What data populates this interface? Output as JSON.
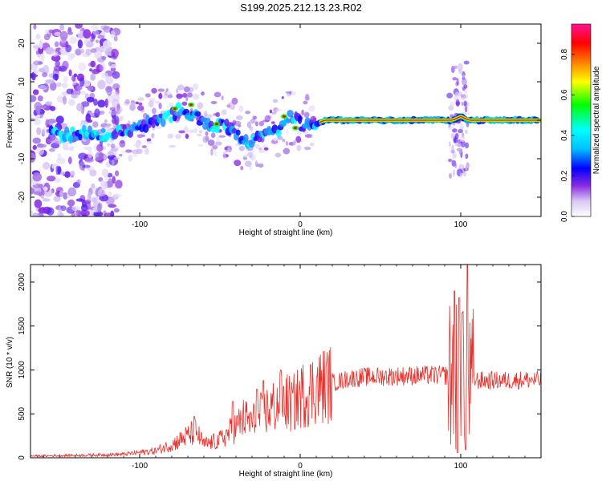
{
  "title": "S199.2025.212.13.23.R02",
  "chart_data": [
    {
      "type": "heatmap",
      "xlabel": "Height of straight line (km)",
      "ylabel": "Frequency (Hz)",
      "xlim": [
        -168,
        150
      ],
      "ylim": [
        -25,
        25
      ],
      "x_ticks": [
        -100,
        0,
        100
      ],
      "y_ticks": [
        -20,
        -10,
        0,
        10,
        20
      ],
      "colorbar": {
        "label": "Normalized spectral amplitude",
        "range": [
          0.0,
          0.95
        ],
        "ticks": [
          0.0,
          0.2,
          0.4,
          0.6,
          0.8
        ],
        "colors": [
          "#ffffff",
          "#d8c8f4",
          "#8a2be2",
          "#0000ff",
          "#00bfff",
          "#00ffff",
          "#00ff00",
          "#ffff00",
          "#ff8000",
          "#ff0000",
          "#ff1493"
        ]
      },
      "ridge": {
        "x": [
          -160,
          -145,
          -130,
          -120,
          -110,
          -100,
          -90,
          -80,
          -75,
          -70,
          -65,
          -60,
          -55,
          -50,
          -45,
          -40,
          -35,
          -30,
          -25,
          -20,
          -15,
          -10,
          -5,
          0,
          5,
          10,
          15,
          20,
          40,
          60,
          80,
          95,
          100,
          105,
          110,
          130,
          150
        ],
        "y": [
          -3,
          -4,
          -3,
          -4,
          -3,
          -2,
          0,
          1,
          3,
          2,
          1,
          -1,
          -2,
          -1,
          -2,
          -3,
          -6,
          -5,
          -4,
          -2,
          -3,
          -1,
          1,
          -1,
          -1,
          -1,
          0,
          0,
          0,
          0,
          0,
          0,
          1,
          0,
          0,
          0,
          0
        ]
      }
    },
    {
      "type": "line",
      "xlabel": "Height of straight line (km)",
      "ylabel": "SNR (10 * v/v)",
      "xlim": [
        -168,
        150
      ],
      "ylim": [
        0,
        2200
      ],
      "x_ticks": [
        -100,
        0,
        100
      ],
      "y_ticks": [
        0,
        500,
        1000,
        1500,
        2000
      ],
      "color": "#e8322d",
      "envelope": {
        "x": [
          -168,
          -130,
          -110,
          -90,
          -80,
          -70,
          -65,
          -60,
          -50,
          -40,
          -35,
          -30,
          -20,
          -15,
          -10,
          -5,
          0,
          5,
          10,
          20,
          30,
          40,
          60,
          80,
          95,
          100,
          105,
          108,
          110,
          120,
          130,
          140,
          150
        ],
        "y": [
          20,
          30,
          40,
          80,
          150,
          250,
          300,
          150,
          200,
          350,
          450,
          400,
          550,
          600,
          650,
          600,
          700,
          750,
          800,
          850,
          900,
          920,
          930,
          940,
          940,
          900,
          800,
          900,
          880,
          880,
          880,
          890,
          880
        ]
      },
      "spikes": [
        {
          "x": -66,
          "y": 470
        },
        {
          "x": -42,
          "y": 640
        },
        {
          "x": -27,
          "y": 780
        },
        {
          "x": -23,
          "y": 880
        },
        {
          "x": -12,
          "y": 1000
        },
        {
          "x": 96,
          "y": 1900
        },
        {
          "x": 99,
          "y": 1820
        },
        {
          "x": 101,
          "y": 1650
        },
        {
          "x": 104,
          "y": 2200
        },
        {
          "x": 98,
          "y": 60
        },
        {
          "x": 103,
          "y": 90
        }
      ]
    }
  ]
}
